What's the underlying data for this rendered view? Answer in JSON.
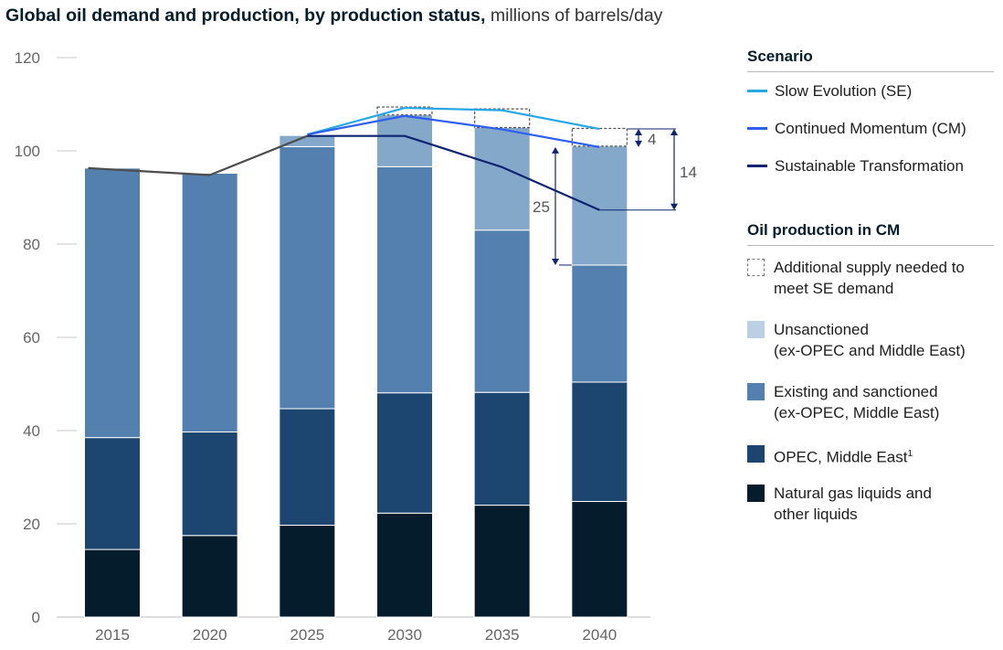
{
  "title": {
    "bold": "Global oil demand and production, by production status,",
    "light": "millions of barrels/day"
  },
  "chart_data": {
    "type": "bar",
    "stacked": true,
    "categories": [
      "2015",
      "2020",
      "2025",
      "2030",
      "2035",
      "2040"
    ],
    "ylim": [
      0,
      120
    ],
    "yticks": [
      0,
      20,
      40,
      60,
      80,
      100,
      120
    ],
    "series": [
      {
        "name": "Natural gas liquids and other liquids",
        "color": "#051c2c",
        "values": [
          14.5,
          17.5,
          19.7,
          22.3,
          24,
          24.8
        ]
      },
      {
        "name": "OPEC, Middle East",
        "color": "#1c4570",
        "values": [
          24,
          22.2,
          25,
          25.8,
          24.2,
          25.6
        ]
      },
      {
        "name": "Existing and sanctioned (ex-OPEC, Middle East)",
        "color": "#5380ae",
        "values": [
          57.8,
          55.5,
          56.2,
          48.5,
          34.8,
          25.1
        ]
      },
      {
        "name": "Unsanctioned (ex-OPEC and Middle East)",
        "color": "#84a8c9",
        "values": [
          0,
          0,
          2.4,
          11.1,
          22,
          25.5
        ]
      },
      {
        "name": "Additional supply needed to meet SE demand",
        "color": "dashed",
        "values": [
          0,
          0,
          0,
          1.7,
          4,
          3.8
        ]
      }
    ],
    "lines": [
      {
        "name": "Slow Evolution (SE)",
        "color": "#27a8e6",
        "points": [
          [
            "2025",
            103.5
          ],
          [
            "2030",
            109.2
          ],
          [
            "2035",
            108.7
          ],
          [
            "2040",
            104.7
          ]
        ]
      },
      {
        "name": "Continued Momentum (CM)",
        "color": "#2c5ff2",
        "points": [
          [
            "2025",
            103.5
          ],
          [
            "2030",
            107.5
          ],
          [
            "2035",
            104.6
          ],
          [
            "2040",
            100.8
          ]
        ]
      },
      {
        "name": "Sustainable Transformation",
        "color": "#0d2472",
        "points": [
          [
            "2025",
            103.2
          ],
          [
            "2030",
            103.2
          ],
          [
            "2035",
            96.5
          ],
          [
            "2040",
            87.3
          ]
        ]
      },
      {
        "name": "Historical demand",
        "color": "#4d4d4d",
        "points": [
          [
            "2015",
            96.3
          ],
          [
            "2020",
            94.8
          ],
          [
            "2025",
            103.2
          ]
        ]
      }
    ],
    "annotations": [
      {
        "label": "4",
        "from": 100.8,
        "to": 104.7
      },
      {
        "label": "14",
        "from": 87.3,
        "to": 104.7
      },
      {
        "label": "25",
        "from": 75.5,
        "to": 100.8
      }
    ]
  },
  "legend": {
    "scenario_title": "Scenario",
    "scenarios": [
      {
        "label": "Slow Evolution (SE)",
        "color": "#27a8e6"
      },
      {
        "label": "Continued Momentum (CM)",
        "color": "#2c5ff2"
      },
      {
        "label": "Sustainable Transformation",
        "color": "#0d2472"
      }
    ],
    "production_title": "Oil production in CM",
    "production": [
      {
        "line1": "Additional supply needed to",
        "line2": "meet SE demand",
        "color": "dashed"
      },
      {
        "line1": "Unsanctioned",
        "line2": "(ex-OPEC and Middle East)",
        "color": "#bcd0e3"
      },
      {
        "line1": "Existing and sanctioned",
        "line2": "(ex-OPEC, Middle East)",
        "color": "#5380ae"
      },
      {
        "line1": "OPEC, Middle East",
        "sup": "1",
        "color": "#1c4570"
      },
      {
        "line1": "Natural gas liquids and",
        "line2": "other liquids",
        "color": "#051c2c"
      }
    ]
  }
}
